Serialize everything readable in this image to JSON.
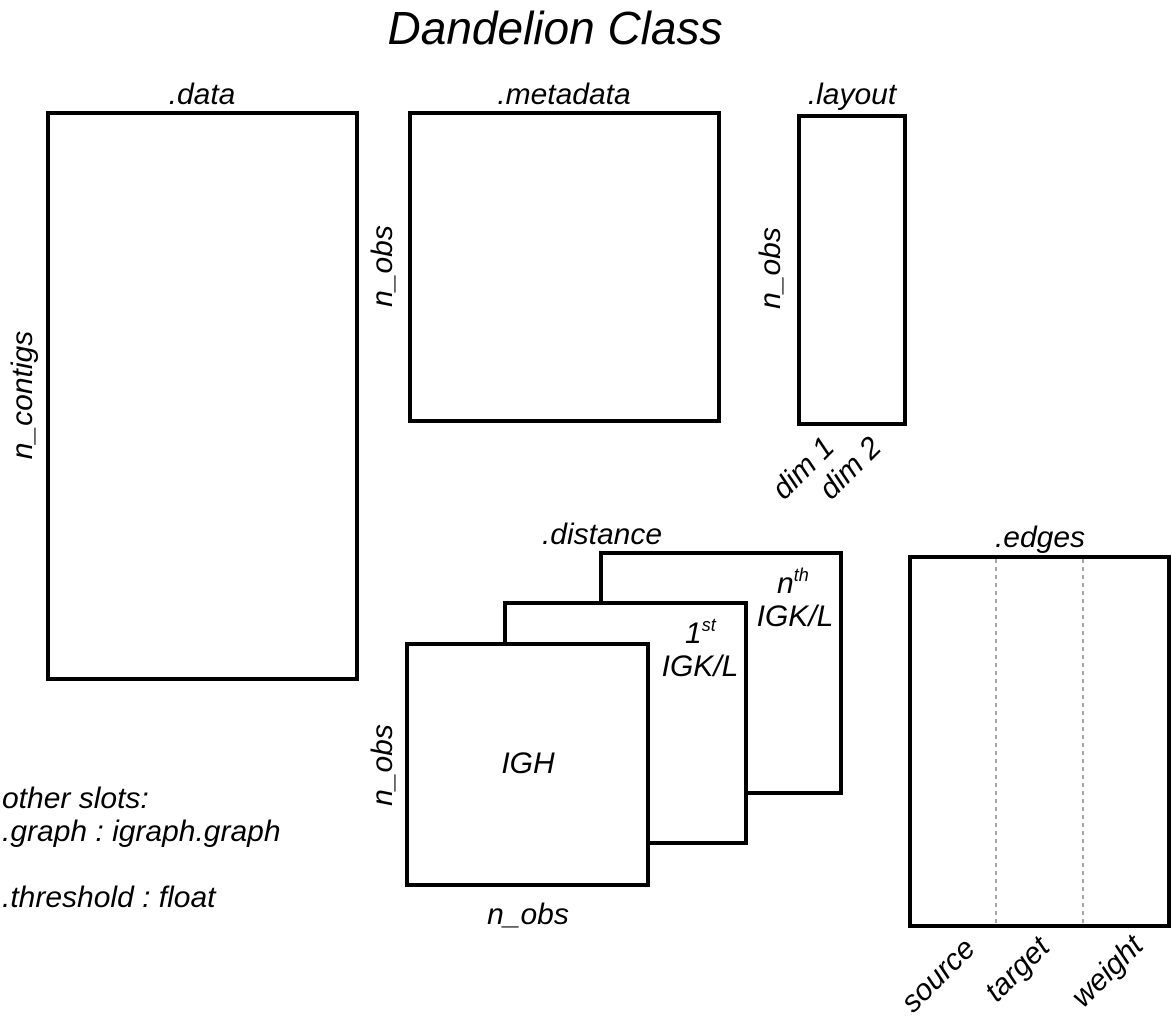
{
  "title": "Dandelion Class",
  "data_slot": {
    "name": ".data",
    "row_label": "n_contigs"
  },
  "metadata_slot": {
    "name": ".metadata",
    "row_label": "n_obs"
  },
  "layout_slot": {
    "name": ".layout",
    "row_label": "n_obs",
    "col_labels": [
      "dim 1",
      "dim 2"
    ]
  },
  "distance_slot": {
    "name": ".distance",
    "row_label": "n_obs",
    "col_label": "n_obs",
    "layers": {
      "front": "IGH",
      "middle_num": "1",
      "middle_sup": "st",
      "middle_chain": "IGK/L",
      "back_num": "n",
      "back_sup": "th",
      "back_chain": "IGK/L"
    }
  },
  "edges_slot": {
    "name": ".edges",
    "columns": [
      "source",
      "target",
      "weight"
    ]
  },
  "other_slots": {
    "heading": "other slots:",
    "items": [
      ".graph : igraph.graph",
      ".threshold : float"
    ]
  }
}
